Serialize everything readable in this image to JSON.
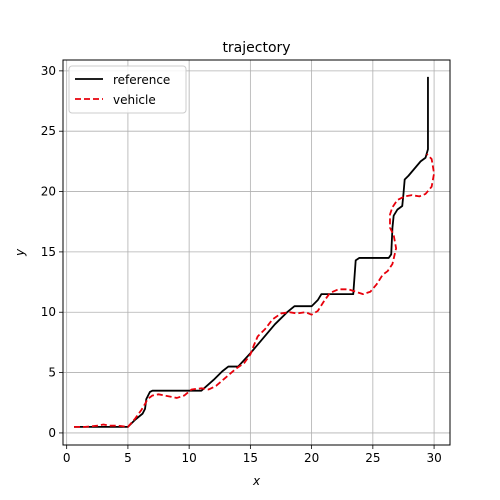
{
  "chart_data": {
    "type": "line",
    "title": "trajectory",
    "xlabel": "x",
    "ylabel": "y",
    "xlim": [
      -0.3,
      31.3
    ],
    "ylim": [
      -1.0,
      30.9
    ],
    "xticks": [
      0,
      5,
      10,
      15,
      20,
      25,
      30
    ],
    "yticks": [
      0,
      5,
      10,
      15,
      20,
      25,
      30
    ],
    "grid": true,
    "legend": "upper-left",
    "series": [
      {
        "name": "reference",
        "color": "#000000",
        "style": "solid",
        "x": [
          0.6,
          5.0,
          5.6,
          6.2,
          6.4,
          6.5,
          6.8,
          7.0,
          11.0,
          12.0,
          12.7,
          13.2,
          14.0,
          15.0,
          16.0,
          17.0,
          18.0,
          18.6,
          19.0,
          20.0,
          20.5,
          20.8,
          21.2,
          23.4,
          23.6,
          23.9,
          26.3,
          26.5,
          26.6,
          26.7,
          27.0,
          27.4,
          27.5,
          27.6,
          27.9,
          28.9,
          29.3,
          29.5,
          29.5
        ],
        "y": [
          0.5,
          0.5,
          1.1,
          1.6,
          2.0,
          2.8,
          3.4,
          3.5,
          3.5,
          4.4,
          5.1,
          5.5,
          5.5,
          6.6,
          7.8,
          9.0,
          10.0,
          10.5,
          10.5,
          10.5,
          11.0,
          11.5,
          11.5,
          11.5,
          14.3,
          14.5,
          14.5,
          14.8,
          17.0,
          18.0,
          18.5,
          18.8,
          19.8,
          21.0,
          21.3,
          22.5,
          22.8,
          23.5,
          29.5
        ]
      },
      {
        "name": "vehicle",
        "color": "#e8000b",
        "style": "dashed",
        "x": [
          0.6,
          1.5,
          2.5,
          3.0,
          3.5,
          4.2,
          5.0,
          5.6,
          6.1,
          6.4,
          6.6,
          7.0,
          7.5,
          8.0,
          9.0,
          9.6,
          10.2,
          11.0,
          11.6,
          12.2,
          13.0,
          13.8,
          14.5,
          15.0,
          15.3,
          15.6,
          16.2,
          16.8,
          17.5,
          18.2,
          18.8,
          19.5,
          20.0,
          20.5,
          21.0,
          21.5,
          22.2,
          23.0,
          23.6,
          24.2,
          24.8,
          25.3,
          25.8,
          26.2,
          26.6,
          26.9,
          26.7,
          26.4,
          26.4,
          26.6,
          27.0,
          27.6,
          28.2,
          28.8,
          29.3,
          29.8,
          30.0,
          29.8,
          29.4
        ],
        "y": [
          0.5,
          0.5,
          0.6,
          0.7,
          0.6,
          0.6,
          0.5,
          1.2,
          1.9,
          2.4,
          2.8,
          3.1,
          3.2,
          3.1,
          2.9,
          3.1,
          3.6,
          3.7,
          3.6,
          3.9,
          4.6,
          5.3,
          5.8,
          6.5,
          7.3,
          8.0,
          8.6,
          9.4,
          9.9,
          10.0,
          9.9,
          10.0,
          9.8,
          10.1,
          10.9,
          11.6,
          11.9,
          11.9,
          11.7,
          11.5,
          11.7,
          12.3,
          13.1,
          13.4,
          14.0,
          15.3,
          16.4,
          17.0,
          18.1,
          18.7,
          19.3,
          19.6,
          19.7,
          19.6,
          19.8,
          20.4,
          21.5,
          22.7,
          23.1
        ]
      }
    ]
  }
}
